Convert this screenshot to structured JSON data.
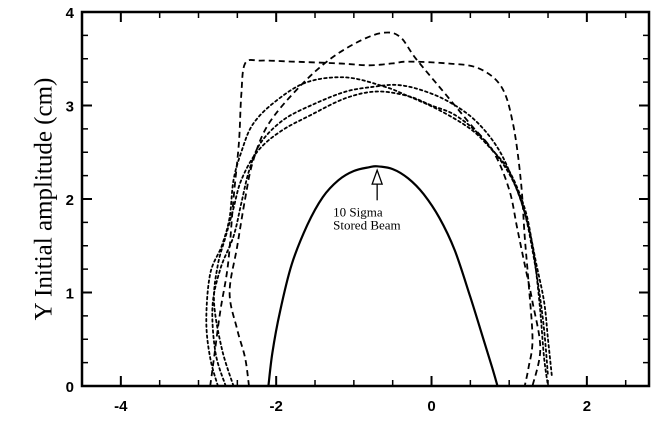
{
  "chart_data": {
    "type": "line",
    "title": "",
    "xlabel": "",
    "ylabel": "Y Initial amplitude (cm)",
    "xlim": [
      -4.5,
      2.8
    ],
    "ylim": [
      0,
      4
    ],
    "x_ticks": [
      -4,
      -2,
      0,
      2
    ],
    "y_ticks": [
      0,
      1,
      2,
      3,
      4
    ],
    "x_tick_labels": [
      "-4",
      "-2",
      "0",
      "2"
    ],
    "y_tick_labels": [
      "0",
      "1",
      "2",
      "3",
      "4"
    ],
    "grid": false,
    "legend": "none",
    "annotation": {
      "lines": [
        "10 Sigma",
        "Stored Beam"
      ],
      "arrow_to": {
        "x": -0.7,
        "y": 2.33
      },
      "arrow_from": {
        "x": -0.7,
        "y": 2.05
      }
    },
    "series": [
      {
        "style": "solid",
        "color": "#000000",
        "x": [
          -2.1,
          -2.05,
          -1.95,
          -1.8,
          -1.6,
          -1.4,
          -1.2,
          -1.0,
          -0.8,
          -0.7,
          -0.5,
          -0.3,
          -0.1,
          0.1,
          0.3,
          0.5,
          0.65,
          0.78,
          0.85
        ],
        "y": [
          0,
          0.35,
          0.8,
          1.3,
          1.72,
          2.02,
          2.2,
          2.3,
          2.34,
          2.35,
          2.32,
          2.22,
          2.05,
          1.8,
          1.45,
          0.95,
          0.55,
          0.2,
          0
        ]
      },
      {
        "style": "dashed",
        "color": "#000000",
        "x": [
          -2.85,
          -2.8,
          -2.72,
          -2.62,
          -2.55,
          -2.48,
          -2.45,
          -2.4,
          -2.2,
          -1.8,
          -1.2,
          -0.8,
          -0.5,
          -0.3,
          0.2,
          0.6,
          0.9,
          1.05,
          1.15,
          1.2,
          1.25,
          1.3,
          1.25,
          1.2
        ],
        "y": [
          0,
          0.3,
          0.8,
          1.3,
          2.0,
          2.6,
          3.1,
          3.45,
          3.48,
          3.47,
          3.45,
          3.43,
          3.45,
          3.47,
          3.45,
          3.4,
          3.2,
          2.8,
          2.2,
          1.6,
          1.1,
          0.5,
          0.2,
          0
        ]
      },
      {
        "style": "dashed",
        "color": "#000000",
        "x": [
          -2.35,
          -2.4,
          -2.5,
          -2.6,
          -2.5,
          -2.4,
          -2.3,
          -2.1,
          -1.7,
          -1.3,
          -0.9,
          -0.6,
          -0.4,
          -0.2,
          0.2,
          0.5,
          0.8,
          1.0,
          1.1,
          1.2,
          1.3,
          1.4,
          1.3
        ],
        "y": [
          0,
          0.3,
          0.6,
          1.0,
          1.5,
          2.0,
          2.4,
          2.8,
          3.2,
          3.5,
          3.7,
          3.78,
          3.73,
          3.5,
          3.1,
          2.8,
          2.5,
          2.1,
          1.7,
          1.3,
          0.9,
          0.4,
          0
        ]
      },
      {
        "style": "dotted",
        "color": "#000000",
        "x": [
          -2.75,
          -2.85,
          -2.9,
          -2.85,
          -2.7,
          -2.6,
          -2.55,
          -2.45,
          -2.3,
          -2.0,
          -1.6,
          -1.1,
          -0.6,
          -0.3,
          0.1,
          0.5,
          0.75,
          1.0,
          1.2,
          1.3,
          1.35,
          1.4,
          1.45,
          1.5
        ],
        "y": [
          0,
          0.3,
          0.7,
          1.2,
          1.5,
          1.8,
          2.2,
          2.5,
          2.8,
          3.05,
          3.25,
          3.3,
          3.2,
          3.1,
          2.95,
          2.75,
          2.55,
          2.3,
          1.9,
          1.5,
          1.2,
          0.8,
          0.3,
          0
        ]
      },
      {
        "style": "dotted",
        "color": "#000000",
        "x": [
          -2.55,
          -2.7,
          -2.8,
          -2.75,
          -2.65,
          -2.55,
          -2.45,
          -2.25,
          -1.95,
          -1.55,
          -1.1,
          -0.7,
          -0.3,
          0.0,
          0.3,
          0.6,
          0.9,
          1.1,
          1.25,
          1.35,
          1.45,
          1.5,
          1.55
        ],
        "y": [
          0,
          0.4,
          0.9,
          1.3,
          1.6,
          1.9,
          2.2,
          2.5,
          2.72,
          2.9,
          3.08,
          3.15,
          3.1,
          3.0,
          2.9,
          2.7,
          2.4,
          2.1,
          1.7,
          1.3,
          0.9,
          0.5,
          0.1
        ]
      },
      {
        "style": "dotted",
        "color": "#000000",
        "x": [
          -2.65,
          -2.78,
          -2.82,
          -2.72,
          -2.55,
          -2.45,
          -2.35,
          -2.2,
          -1.9,
          -1.5,
          -1.1,
          -0.75,
          -0.45,
          -0.15,
          0.2,
          0.55,
          0.85,
          1.05,
          1.2,
          1.3,
          1.38,
          1.45,
          1.5
        ],
        "y": [
          0,
          0.35,
          0.85,
          1.25,
          1.6,
          1.95,
          2.3,
          2.6,
          2.85,
          3.02,
          3.15,
          3.2,
          3.22,
          3.17,
          3.05,
          2.85,
          2.55,
          2.2,
          1.85,
          1.45,
          1.05,
          0.6,
          0.1
        ]
      }
    ]
  }
}
